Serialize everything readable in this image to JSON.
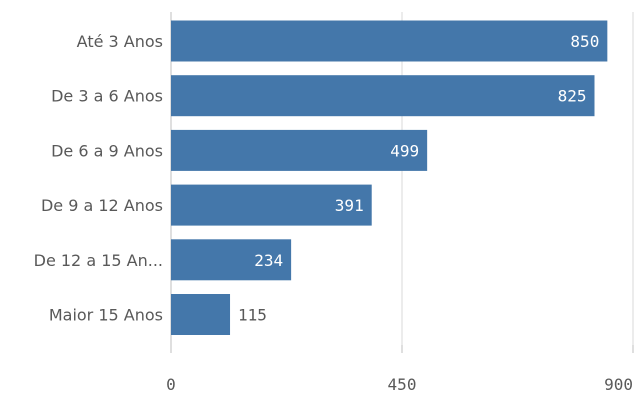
{
  "chart_data": {
    "type": "bar",
    "orientation": "horizontal",
    "categories": [
      "Até 3 Anos",
      "De 3 a 6 Anos",
      "De 6 a 9 Anos",
      "De 9 a 12 Anos",
      "De 12 a 15 An...",
      "Maior 15 Anos"
    ],
    "values": [
      850,
      825,
      499,
      391,
      234,
      115
    ],
    "xlim": [
      0,
      900
    ],
    "xticks": [
      "0",
      "450",
      "900"
    ],
    "title": "",
    "xlabel": "",
    "ylabel": "",
    "grid": true,
    "legend": "none",
    "bar_color": "#4477aa",
    "label_inside_color": "#ffffff",
    "label_outside_color": "#595959",
    "gridline_color": "#d9d9d9",
    "axis_color": "#bfbfbf"
  }
}
